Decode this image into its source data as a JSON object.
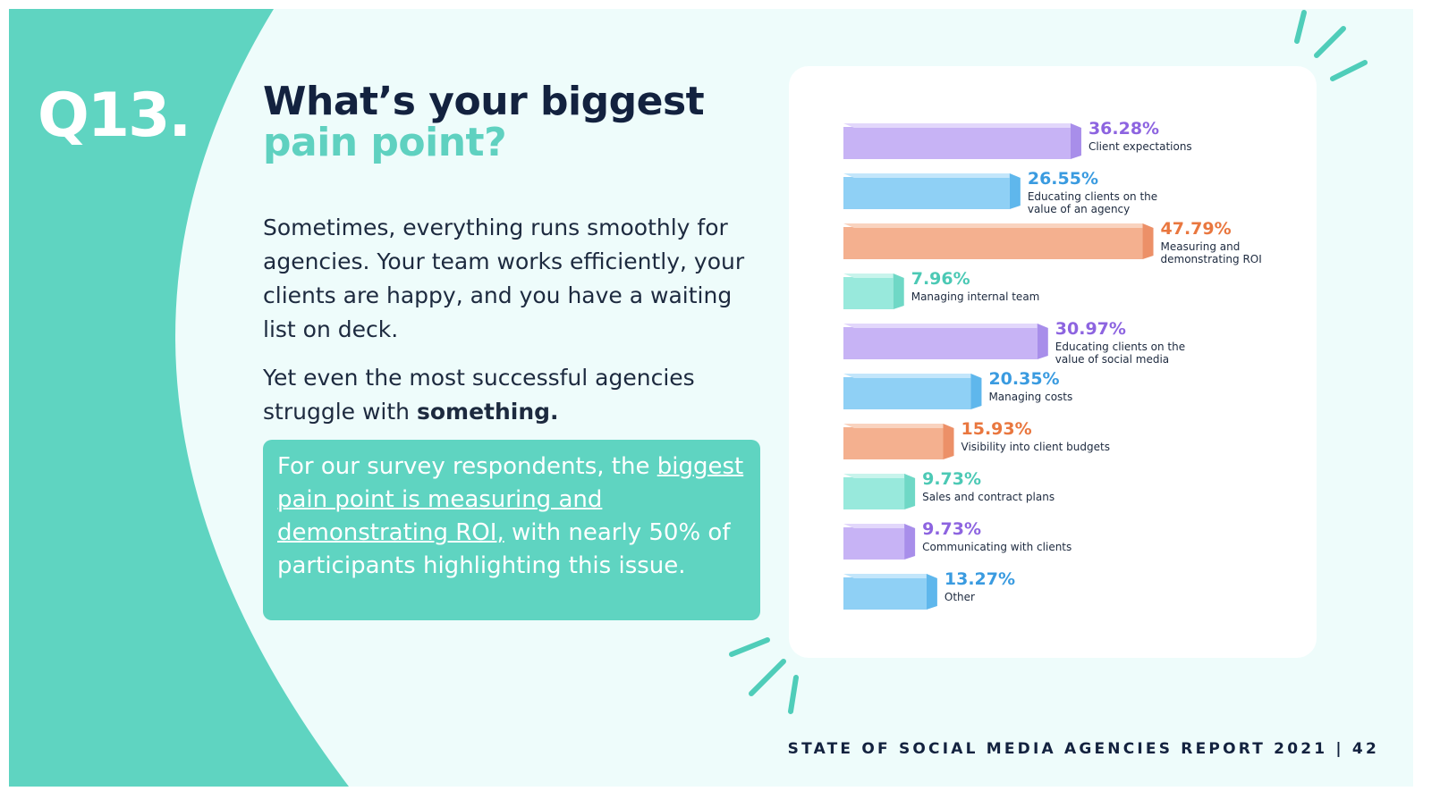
{
  "question_number": "Q13.",
  "title": {
    "line1": "What’s your biggest",
    "line2": "pain point?"
  },
  "paragraph1": "Sometimes, everything runs smoothly for agencies. Your team works efficiently, your clients are happy, and you have a waiting list on deck.",
  "paragraph2": {
    "text": "Yet even the most successful agencies struggle with",
    "bold": "something."
  },
  "callout": {
    "before": "For our survey respondents, the",
    "underlined": "biggest pain point is measuring and demonstrating ROI,",
    "after": "with nearly 50% of participants highlighting this issue."
  },
  "footer": "STATE OF SOCIAL MEDIA AGENCIES REPORT 2021 | 42",
  "colors": {
    "teal": "#5fd4c1",
    "navy": "#13223f",
    "background": "#eefcfb",
    "purple": "#8d64e0",
    "blue": "#3a9be0",
    "orange": "#e9773f",
    "mint": "#4cc9b5"
  },
  "chart_data": {
    "type": "bar",
    "orientation": "horizontal",
    "unit": "%",
    "categories": [
      "Client expectations",
      "Educating clients on the value of an agency",
      "Measuring and demonstrating ROI",
      "Managing internal team",
      "Educating clients on the value of social media",
      "Managing costs",
      "Visibility into client budgets",
      "Sales and contract plans",
      "Communicating with clients",
      "Other"
    ],
    "label_lines": [
      [
        "Client expectations"
      ],
      [
        "Educating clients on the",
        "value of an agency"
      ],
      [
        "Measuring and",
        "demonstrating ROI"
      ],
      [
        "Managing internal team"
      ],
      [
        "Educating clients on the",
        "value of social media"
      ],
      [
        "Managing costs"
      ],
      [
        "Visibility into client budgets"
      ],
      [
        "Sales and contract plans"
      ],
      [
        "Communicating with clients"
      ],
      [
        "Other"
      ]
    ],
    "values": [
      36.28,
      26.55,
      47.79,
      7.96,
      30.97,
      20.35,
      15.93,
      9.73,
      9.73,
      13.27
    ],
    "value_labels": [
      "36.28%",
      "26.55%",
      "47.79%",
      "7.96%",
      "30.97%",
      "20.35%",
      "15.93%",
      "9.73%",
      "9.73%",
      "13.27%"
    ],
    "bar_colors": [
      "purple",
      "blue",
      "orange",
      "mint",
      "purple",
      "blue",
      "orange",
      "mint",
      "purple",
      "blue"
    ]
  }
}
